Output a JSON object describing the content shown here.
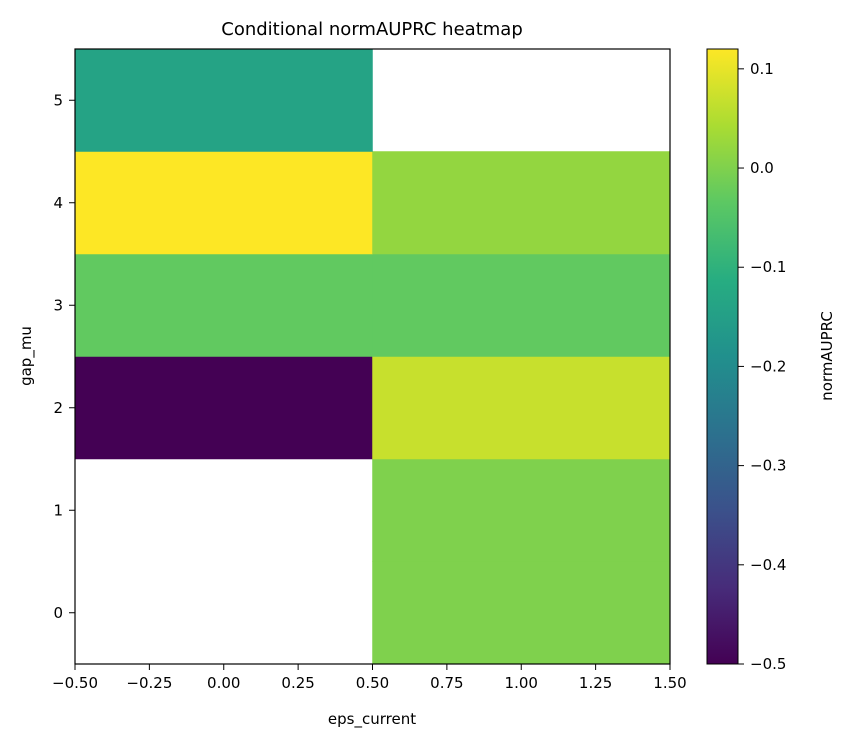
{
  "chart_data": {
    "type": "heatmap",
    "title": "Conditional normAUPRC heatmap",
    "xlabel": "eps_current",
    "ylabel": "gap_mu",
    "colorbar_label": "normAUPRC",
    "colormap": "viridis",
    "xlim": [
      -0.5,
      1.5
    ],
    "ylim": [
      -0.5,
      5.5
    ],
    "vmin": -0.5,
    "vmax": 0.12,
    "x_ticks": [
      -0.5,
      -0.25,
      0.0,
      0.25,
      0.5,
      0.75,
      1.0,
      1.25,
      1.5
    ],
    "x_tick_labels": [
      "−0.50",
      "−0.25",
      "0.00",
      "0.25",
      "0.50",
      "0.75",
      "1.00",
      "1.25",
      "1.50"
    ],
    "y_ticks": [
      0,
      1,
      2,
      3,
      4,
      5
    ],
    "y_tick_labels": [
      "0",
      "1",
      "2",
      "3",
      "4",
      "5"
    ],
    "colorbar_ticks": [
      0.1,
      0.0,
      -0.1,
      -0.2,
      -0.3,
      -0.4,
      -0.5
    ],
    "colorbar_tick_labels": [
      "0.1",
      "0.0",
      "−0.1",
      "−0.2",
      "−0.3",
      "−0.4",
      "−0.5"
    ],
    "x": [
      0,
      1
    ],
    "y": [
      0,
      1,
      2,
      3,
      4,
      5
    ],
    "values": [
      [
        null,
        0.0
      ],
      [
        null,
        0.0
      ],
      [
        -0.5,
        0.07
      ],
      [
        -0.03,
        -0.03
      ],
      [
        0.12,
        0.02
      ],
      [
        -0.14,
        null
      ]
    ]
  }
}
